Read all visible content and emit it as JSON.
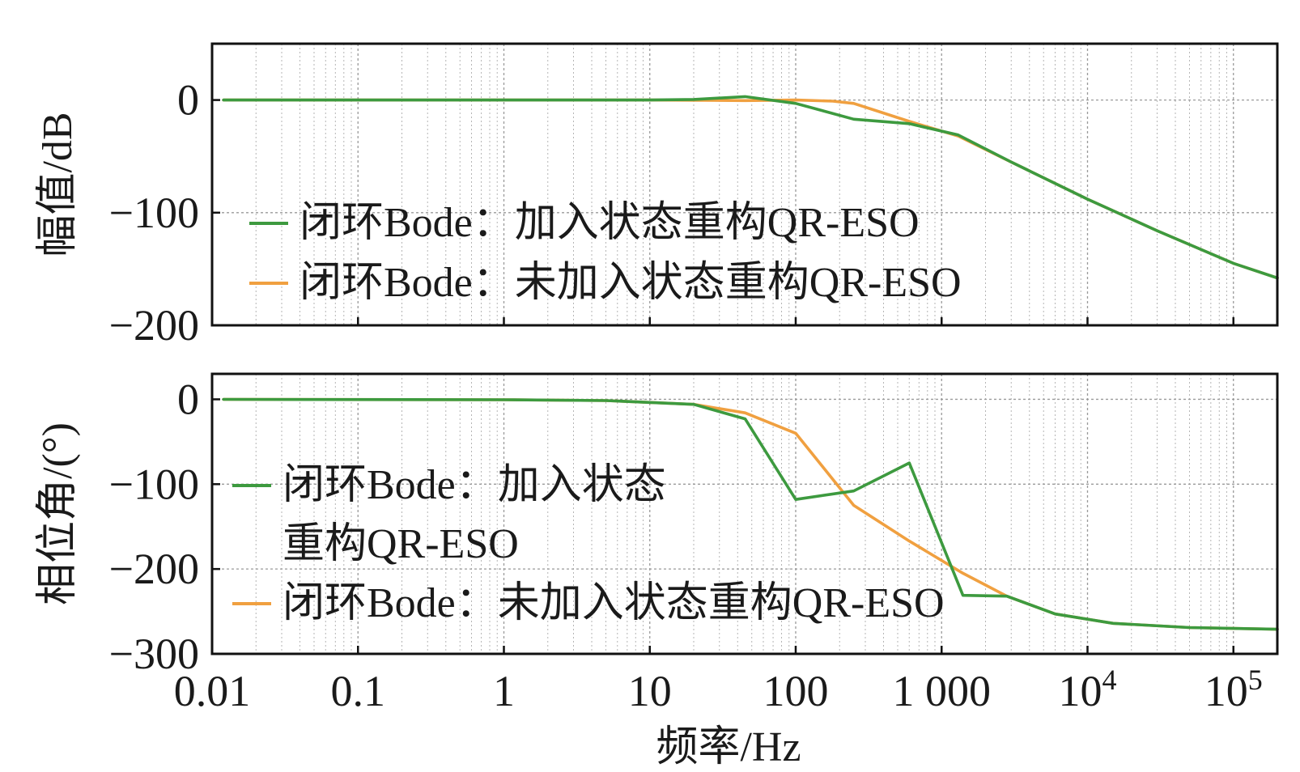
{
  "chart_data": [
    {
      "type": "line",
      "xscale": "log",
      "xlim": [
        0.01,
        200000
      ],
      "ylim": [
        -200,
        50
      ],
      "ylabel": "幅值/dB",
      "yticks": [
        0,
        -100,
        -200
      ],
      "ytick_labels": [
        "0",
        "−100",
        "−200"
      ],
      "grid": true,
      "legend": {
        "placement": "lower-left",
        "lines": [
          [
            {
              "text": "闭环Bode：加入状态重构QR-ESO",
              "series": 0
            }
          ],
          [
            {
              "text": "闭环Bode：未加入状态重构QR-ESO",
              "series": 1
            }
          ]
        ]
      },
      "series": [
        {
          "name": "闭环Bode：加入状态重构QR-ESO",
          "color": "#3d9a3f",
          "x": [
            0.012,
            1,
            10,
            20,
            45,
            100,
            250,
            600,
            1300,
            3000,
            10000,
            30000,
            100000,
            200000
          ],
          "y": [
            0,
            0,
            0,
            0.5,
            3,
            -3,
            -17,
            -21,
            -31,
            -55,
            -88,
            -116,
            -145,
            -158
          ]
        },
        {
          "name": "闭环Bode：未加入状态重构QR-ESO",
          "color": "#f0a040",
          "x": [
            0.012,
            1,
            10,
            45,
            100,
            180,
            250,
            600,
            1300,
            3000,
            10000,
            30000,
            100000,
            200000
          ],
          "y": [
            0,
            0,
            0,
            -0.5,
            0,
            -1,
            -3,
            -19,
            -32,
            -55,
            -88,
            -116,
            -145,
            -158
          ]
        }
      ]
    },
    {
      "type": "line",
      "xscale": "log",
      "xlim": [
        0.01,
        200000
      ],
      "ylim": [
        -300,
        30
      ],
      "xlabel": "频率/Hz",
      "ylabel": "相位角/(°)",
      "yticks": [
        0,
        -100,
        -200,
        -300
      ],
      "ytick_labels": [
        "0",
        "−100",
        "−200",
        "−300"
      ],
      "xticks": [
        0.01,
        0.1,
        1,
        10,
        100,
        1000,
        10000,
        100000
      ],
      "xtick_labels": [
        "0.01",
        "0.1",
        "1",
        "10",
        "100",
        "1 000",
        "10^4",
        "10^5"
      ],
      "grid": true,
      "legend": {
        "placement": "lower-left",
        "lines": [
          [
            {
              "text": "闭环Bode：加入状态",
              "series": 0
            }
          ],
          [
            {
              "text": "重构QR-ESO",
              "series": null
            }
          ],
          [
            {
              "text": "闭环Bode：未加入状态重构QR-ESO",
              "series": 1
            }
          ]
        ]
      },
      "series": [
        {
          "name": "闭环Bode：加入状态重构QR-ESO",
          "color": "#3d9a3f",
          "x": [
            0.012,
            1,
            5,
            20,
            45,
            100,
            250,
            600,
            1400,
            2800,
            6000,
            15000,
            50000,
            200000
          ],
          "y": [
            0,
            -0.5,
            -1.5,
            -6,
            -23,
            -118,
            -108,
            -75,
            -231,
            -232,
            -253,
            -264,
            -269,
            -271
          ]
        },
        {
          "name": "闭环Bode：未加入状态重构QR-ESO",
          "color": "#f0a040",
          "x": [
            0.012,
            1,
            5,
            20,
            45,
            100,
            250,
            600,
            1400,
            2800,
            6000,
            15000,
            50000,
            200000
          ],
          "y": [
            0,
            -0.5,
            -1.5,
            -6,
            -16,
            -40,
            -125,
            -167,
            -205,
            -232,
            -253,
            -264,
            -269,
            -271
          ]
        }
      ]
    }
  ]
}
